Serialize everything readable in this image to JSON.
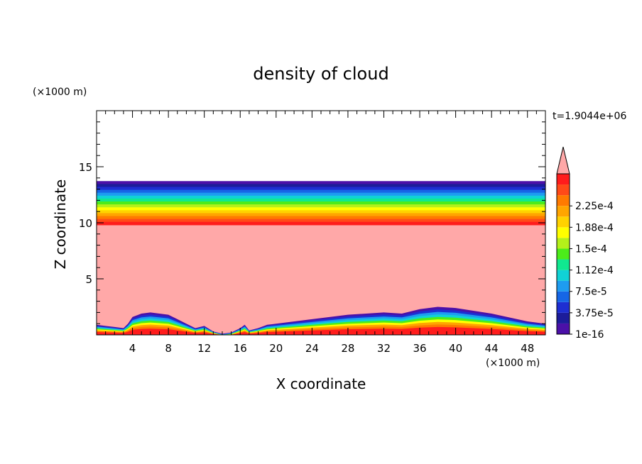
{
  "chart_data": {
    "type": "heatmap",
    "title": "density of cloud",
    "xlabel": "X coordinate",
    "ylabel": "Z coordinate",
    "x_unit": "(×1000 m)",
    "y_unit": "(×1000 m)",
    "time_label": "t=1.9044e+06",
    "xlim": [
      0,
      50
    ],
    "ylim": [
      0,
      20
    ],
    "x_ticks": [
      4,
      8,
      12,
      16,
      20,
      24,
      28,
      32,
      36,
      40,
      44,
      48
    ],
    "y_ticks": [
      5,
      10,
      15
    ],
    "cloud_top_km": 13.7,
    "saturated_top_km": 9.8,
    "colorbar": {
      "levels": [
        1e-16,
        3.75e-05,
        7.5e-05,
        0.000112,
        0.00015,
        0.000188,
        0.000225
      ],
      "labels": [
        "1e-16",
        "3.75e-5",
        "7.5e-5",
        "1.12e-4",
        "1.5e-4",
        "1.88e-4",
        "2.25e-4"
      ],
      "extend": "max",
      "colors": [
        "#4b10a8",
        "#1c1c9a",
        "#1e2ed2",
        "#1666e6",
        "#1e9cf0",
        "#10d2d6",
        "#10e890",
        "#4cec1a",
        "#b4f01a",
        "#ffff00",
        "#ffd200",
        "#ffa500",
        "#ff7a00",
        "#ff4a18",
        "#ff1c1c"
      ],
      "over_color": "#ffa8a8"
    },
    "lower_boundary_km": [
      [
        0,
        0.9
      ],
      [
        1,
        0.8
      ],
      [
        2,
        0.7
      ],
      [
        3,
        0.6
      ],
      [
        3.5,
        1.0
      ],
      [
        4,
        1.6
      ],
      [
        5,
        1.9
      ],
      [
        6,
        2.0
      ],
      [
        7,
        1.9
      ],
      [
        8,
        1.8
      ],
      [
        9,
        1.4
      ],
      [
        10,
        1.0
      ],
      [
        11,
        0.6
      ],
      [
        12,
        0.8
      ],
      [
        13,
        0.3
      ],
      [
        14,
        0.1
      ],
      [
        15,
        0.2
      ],
      [
        16,
        0.6
      ],
      [
        16.5,
        0.9
      ],
      [
        17,
        0.4
      ],
      [
        18,
        0.6
      ],
      [
        19,
        0.9
      ],
      [
        20,
        1.0
      ],
      [
        24,
        1.4
      ],
      [
        28,
        1.8
      ],
      [
        32,
        2.0
      ],
      [
        34,
        1.9
      ],
      [
        36,
        2.3
      ],
      [
        38,
        2.5
      ],
      [
        40,
        2.4
      ],
      [
        44,
        1.9
      ],
      [
        48,
        1.2
      ],
      [
        50,
        1.0
      ]
    ]
  }
}
